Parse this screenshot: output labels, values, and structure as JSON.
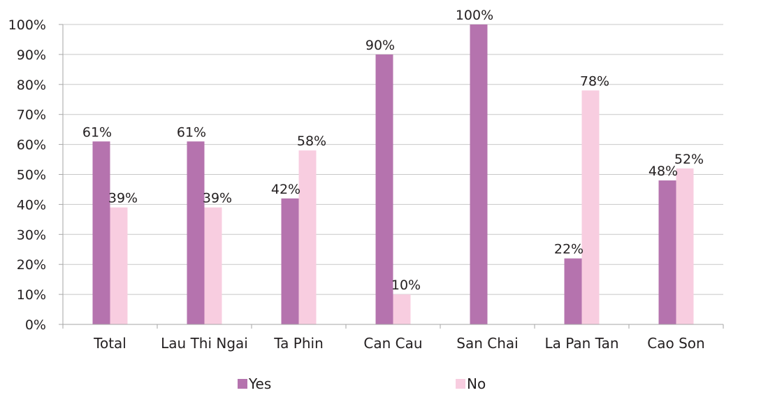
{
  "chart_data": {
    "type": "bar",
    "categories": [
      "Total",
      "Lau Thi Ngai",
      "Ta Phin",
      "Can Cau",
      "San Chai",
      "La Pan Tan",
      "Cao Son"
    ],
    "series": [
      {
        "name": "Yes",
        "color": "#b573ae",
        "values": [
          61,
          61,
          42,
          90,
          100,
          22,
          48
        ],
        "labels": [
          "61%",
          "61%",
          "42%",
          "90%",
          "100%",
          "22%",
          "48%"
        ]
      },
      {
        "name": "No",
        "color": "#f8cde0",
        "values": [
          39,
          39,
          58,
          10,
          0,
          78,
          52
        ],
        "labels": [
          "39%",
          "39%",
          "58%",
          "10%",
          "",
          "78%",
          "52%"
        ]
      }
    ],
    "ylim": [
      0,
      100
    ],
    "yticks": [
      "0%",
      "10%",
      "20%",
      "30%",
      "40%",
      "50%",
      "60%",
      "70%",
      "80%",
      "90%",
      "100%"
    ],
    "grid": true,
    "legend_position": "bottom",
    "title": "",
    "xlabel": "",
    "ylabel": ""
  }
}
